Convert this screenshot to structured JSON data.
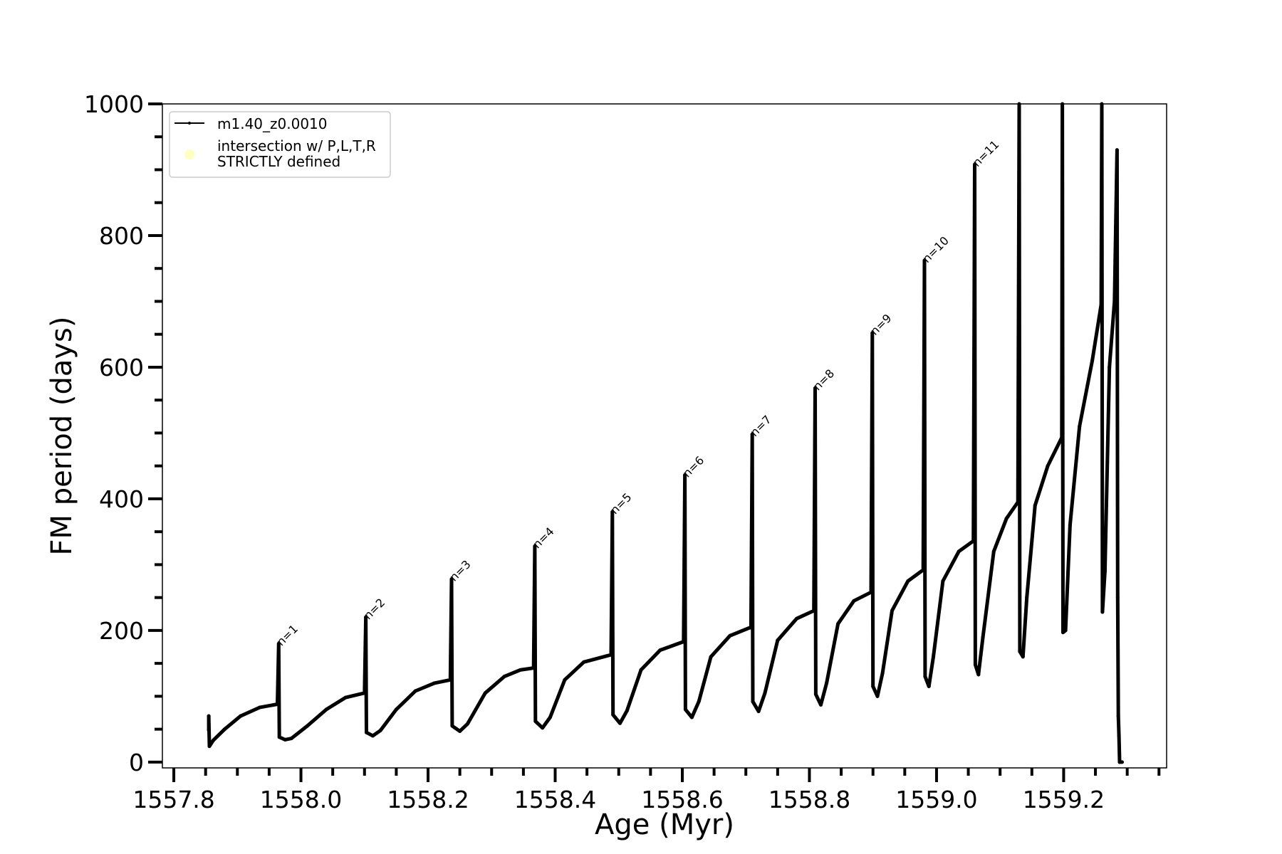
{
  "chart_data": {
    "type": "line",
    "title": "",
    "xlabel": "Age (Myr)",
    "ylabel": "FM period (days)",
    "xlim": [
      1557.782,
      1559.362
    ],
    "ylim": [
      -8.8,
      1000
    ],
    "x_major_ticks": [
      1557.8,
      1558.0,
      1558.2,
      1558.4,
      1558.6,
      1558.8,
      1559.0,
      1559.2
    ],
    "x_tick_labels": [
      "1557.8",
      "1558.0",
      "1558.2",
      "1558.4",
      "1558.6",
      "1558.8",
      "1559.0",
      "1559.2"
    ],
    "x_minor_step": 0.05,
    "y_major_ticks": [
      0,
      200,
      400,
      600,
      800,
      1000
    ],
    "y_tick_labels": [
      "0",
      "200",
      "400",
      "600",
      "800",
      "1000"
    ],
    "y_minor_step": 50,
    "grid": false,
    "legend": {
      "placement": "top-left",
      "entries": [
        {
          "label": "m1.40_z0.0010",
          "color": "#000000",
          "marker": "line-dot"
        },
        {
          "label_lines": [
            "intersection w/ P,L,T,R",
            "STRICTLY defined"
          ],
          "color": "#ffffc0",
          "marker": "circle"
        }
      ]
    },
    "series": [
      {
        "name": "m1.40_z0.0010",
        "color": "#000000",
        "points": [
          [
            1557.855,
            48
          ],
          [
            1557.855,
            70
          ],
          [
            1557.856,
            24
          ],
          [
            1557.862,
            33
          ],
          [
            1557.88,
            50
          ],
          [
            1557.905,
            70
          ],
          [
            1557.935,
            83
          ],
          [
            1557.963,
            88
          ],
          [
            1557.965,
            180
          ],
          [
            1557.966,
            38
          ],
          [
            1557.975,
            34
          ],
          [
            1557.985,
            36
          ],
          [
            1558.01,
            55
          ],
          [
            1558.04,
            80
          ],
          [
            1558.07,
            98
          ],
          [
            1558.1,
            105
          ],
          [
            1558.102,
            220
          ],
          [
            1558.103,
            45
          ],
          [
            1558.113,
            40
          ],
          [
            1558.125,
            48
          ],
          [
            1558.15,
            80
          ],
          [
            1558.18,
            108
          ],
          [
            1558.21,
            120
          ],
          [
            1558.235,
            125
          ],
          [
            1558.237,
            278
          ],
          [
            1558.238,
            55
          ],
          [
            1558.25,
            47
          ],
          [
            1558.262,
            58
          ],
          [
            1558.29,
            105
          ],
          [
            1558.32,
            130
          ],
          [
            1558.345,
            140
          ],
          [
            1558.366,
            143
          ],
          [
            1558.368,
            328
          ],
          [
            1558.369,
            62
          ],
          [
            1558.38,
            52
          ],
          [
            1558.392,
            68
          ],
          [
            1558.415,
            125
          ],
          [
            1558.445,
            152
          ],
          [
            1558.488,
            163
          ],
          [
            1558.49,
            380
          ],
          [
            1558.491,
            72
          ],
          [
            1558.502,
            59
          ],
          [
            1558.513,
            78
          ],
          [
            1558.535,
            140
          ],
          [
            1558.565,
            170
          ],
          [
            1558.602,
            183
          ],
          [
            1558.604,
            436
          ],
          [
            1558.605,
            80
          ],
          [
            1558.615,
            68
          ],
          [
            1558.626,
            92
          ],
          [
            1558.645,
            160
          ],
          [
            1558.675,
            192
          ],
          [
            1558.708,
            205
          ],
          [
            1558.71,
            498
          ],
          [
            1558.711,
            92
          ],
          [
            1558.72,
            77
          ],
          [
            1558.73,
            105
          ],
          [
            1558.75,
            185
          ],
          [
            1558.78,
            218
          ],
          [
            1558.807,
            230
          ],
          [
            1558.809,
            568
          ],
          [
            1558.81,
            103
          ],
          [
            1558.818,
            87
          ],
          [
            1558.827,
            120
          ],
          [
            1558.845,
            210
          ],
          [
            1558.87,
            245
          ],
          [
            1558.897,
            258
          ],
          [
            1558.899,
            652
          ],
          [
            1558.9,
            115
          ],
          [
            1558.907,
            100
          ],
          [
            1558.915,
            135
          ],
          [
            1558.93,
            230
          ],
          [
            1558.955,
            275
          ],
          [
            1558.979,
            292
          ],
          [
            1558.981,
            762
          ],
          [
            1558.982,
            130
          ],
          [
            1558.988,
            115
          ],
          [
            1558.995,
            160
          ],
          [
            1559.01,
            275
          ],
          [
            1559.035,
            320
          ],
          [
            1559.058,
            336
          ],
          [
            1559.06,
            908
          ],
          [
            1559.061,
            148
          ],
          [
            1559.066,
            133
          ],
          [
            1559.073,
            190
          ],
          [
            1559.09,
            320
          ],
          [
            1559.11,
            370
          ],
          [
            1559.128,
            395
          ],
          [
            1559.13,
            1000
          ],
          [
            1559.131,
            168
          ],
          [
            1559.136,
            160
          ],
          [
            1559.142,
            250
          ],
          [
            1559.155,
            390
          ],
          [
            1559.175,
            450
          ],
          [
            1559.197,
            493
          ],
          [
            1559.198,
            1000
          ],
          [
            1559.199,
            197
          ],
          [
            1559.203,
            200
          ],
          [
            1559.21,
            360
          ],
          [
            1559.225,
            510
          ],
          [
            1559.245,
            610
          ],
          [
            1559.259,
            695
          ],
          [
            1559.26,
            1000
          ],
          [
            1559.261,
            228
          ],
          [
            1559.265,
            290
          ],
          [
            1559.272,
            600
          ],
          [
            1559.28,
            700
          ],
          [
            1559.284,
            930
          ],
          [
            1559.285,
            250
          ],
          [
            1559.286,
            70
          ],
          [
            1559.287,
            40
          ],
          [
            1559.288,
            0
          ],
          [
            1559.292,
            0
          ]
        ]
      }
    ],
    "annotations": [
      {
        "text": "n=1",
        "x": 1557.965,
        "y": 180
      },
      {
        "text": "n=2",
        "x": 1558.102,
        "y": 220
      },
      {
        "text": "n=3",
        "x": 1558.237,
        "y": 278
      },
      {
        "text": "n=4",
        "x": 1558.368,
        "y": 328
      },
      {
        "text": "n=5",
        "x": 1558.49,
        "y": 380
      },
      {
        "text": "n=6",
        "x": 1558.604,
        "y": 436
      },
      {
        "text": "n=7",
        "x": 1558.71,
        "y": 498
      },
      {
        "text": "n=8",
        "x": 1558.809,
        "y": 568
      },
      {
        "text": "n=9",
        "x": 1558.899,
        "y": 652
      },
      {
        "text": "n=10",
        "x": 1558.981,
        "y": 762
      },
      {
        "text": "n=11",
        "x": 1559.06,
        "y": 908
      }
    ]
  }
}
